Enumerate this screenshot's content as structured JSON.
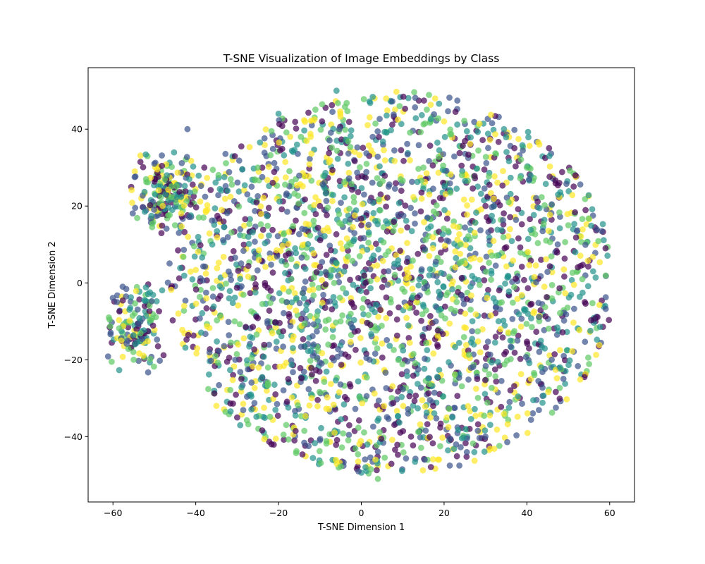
{
  "chart_data": {
    "type": "scatter",
    "title": "T-SNE Visualization of Image Embeddings by Class",
    "xlabel": "T-SNE Dimension 1",
    "ylabel": "T-SNE Dimension 2",
    "xlim": [
      -66,
      66
    ],
    "ylim": [
      -57,
      56
    ],
    "xticks": [
      -60,
      -40,
      -20,
      0,
      20,
      40,
      60
    ],
    "yticks": [
      -40,
      -20,
      0,
      20,
      40
    ],
    "xtick_labels": [
      "−60",
      "−40",
      "−20",
      "0",
      "20",
      "40",
      "60"
    ],
    "ytick_labels": [
      "−40",
      "−20",
      "0",
      "20",
      "40"
    ],
    "grid": false,
    "legend": "none",
    "colormap": [
      "#440154",
      "#3b528b",
      "#21918c",
      "#5ec962",
      "#fde725"
    ],
    "point_alpha": 0.7,
    "approx_point_count": 3000,
    "clusters": [
      {
        "label": "main-cloud",
        "center": [
          5,
          0
        ],
        "extent_x": [
          -44,
          60
        ],
        "extent_y": [
          -52,
          51
        ]
      },
      {
        "label": "upper-left-group",
        "center": [
          -48,
          24
        ],
        "extent_x": [
          -56,
          -38
        ],
        "extent_y": [
          14,
          33
        ]
      },
      {
        "label": "left-group",
        "center": [
          -55,
          -10
        ],
        "extent_x": [
          -61,
          -45
        ],
        "extent_y": [
          -25,
          -1
        ]
      }
    ],
    "points_sample": [
      [
        -61,
        -9,
        3
      ],
      [
        -59,
        -5,
        1
      ],
      [
        -58,
        -15,
        4
      ],
      [
        -56,
        -7,
        2
      ],
      [
        -55,
        -20,
        3
      ],
      [
        -52,
        27,
        3
      ],
      [
        -50,
        31,
        1
      ],
      [
        -48,
        20,
        4
      ],
      [
        -47,
        28,
        2
      ],
      [
        -45,
        15,
        3
      ],
      [
        -42,
        40,
        1
      ],
      [
        -36,
        10,
        2
      ],
      [
        -30,
        -35,
        0
      ],
      [
        -25,
        30,
        3
      ],
      [
        -20,
        44,
        2
      ],
      [
        -18,
        -5,
        1
      ],
      [
        -12,
        -30,
        4
      ],
      [
        -10,
        20,
        0
      ],
      [
        -6,
        50,
        2
      ],
      [
        -5,
        -10,
        3
      ],
      [
        0,
        15,
        0
      ],
      [
        2,
        -20,
        1
      ],
      [
        4,
        -51,
        3
      ],
      [
        6,
        48,
        4
      ],
      [
        8,
        5,
        2
      ],
      [
        12,
        -40,
        0
      ],
      [
        15,
        30,
        3
      ],
      [
        18,
        -10,
        1
      ],
      [
        20,
        42,
        4
      ],
      [
        22,
        -35,
        2
      ],
      [
        24,
        10,
        3
      ],
      [
        28,
        -25,
        0
      ],
      [
        32,
        20,
        1
      ],
      [
        36,
        -15,
        2
      ],
      [
        40,
        30,
        3
      ],
      [
        43,
        36,
        4
      ],
      [
        46,
        -20,
        1
      ],
      [
        50,
        15,
        3
      ],
      [
        54,
        -5,
        0
      ],
      [
        56,
        3,
        2
      ],
      [
        59,
        9,
        0
      ],
      [
        1,
        -48,
        2
      ],
      [
        -35,
        -32,
        4
      ],
      [
        30,
        -40,
        1
      ],
      [
        48,
        -22,
        2
      ]
    ]
  }
}
